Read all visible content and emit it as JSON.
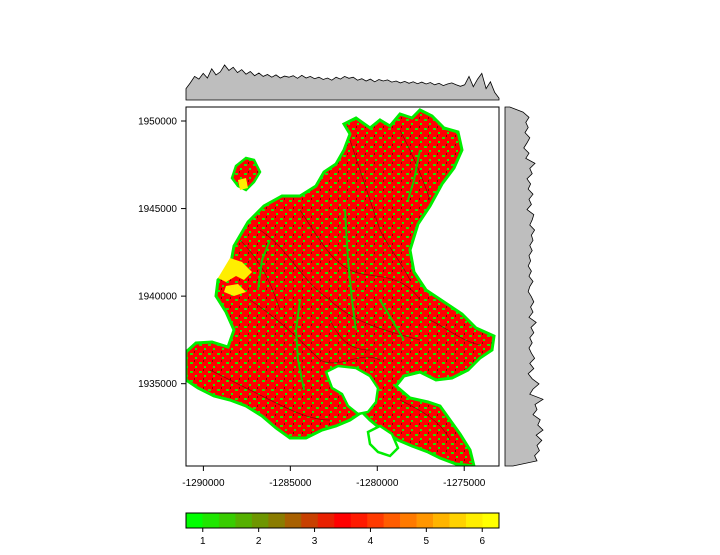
{
  "chart_data": {
    "type": "heatmap",
    "title": "",
    "xlabel": "",
    "ylabel": "",
    "xlim": [
      -1291000,
      -1273000
    ],
    "ylim": [
      1930300,
      1950800
    ],
    "x_ticks": [
      {
        "value": -1290000,
        "label": "-1290000"
      },
      {
        "value": -1285000,
        "label": "-1285000"
      },
      {
        "value": -1280000,
        "label": "-1280000"
      },
      {
        "value": -1275000,
        "label": "-1275000"
      }
    ],
    "y_ticks": [
      {
        "value": 1935000,
        "label": "1935000"
      },
      {
        "value": 1940000,
        "label": "1940000"
      },
      {
        "value": 1945000,
        "label": "1945000"
      },
      {
        "value": 1950000,
        "label": "1950000"
      }
    ],
    "colorbar": {
      "range": [
        0.7,
        6.3
      ],
      "colors": [
        "#00ff00",
        "#1fe600",
        "#38cc00",
        "#55b000",
        "#6e9600",
        "#8a7c00",
        "#a86000",
        "#c84000",
        "#e82000",
        "#ff0000",
        "#ff1a00",
        "#ff3a00",
        "#ff5c00",
        "#ff7a00",
        "#ff9600",
        "#ffb400",
        "#ffd200",
        "#ffee00",
        "#ffff00"
      ],
      "ticks": [
        {
          "value": 1,
          "label": "1"
        },
        {
          "value": 2,
          "label": "2"
        },
        {
          "value": 3,
          "label": "3"
        },
        {
          "value": 4,
          "label": "4"
        },
        {
          "value": 5,
          "label": "5"
        },
        {
          "value": 6,
          "label": "6"
        }
      ]
    },
    "x_marginal": [
      0.3,
      0.45,
      0.62,
      0.55,
      0.7,
      0.58,
      0.82,
      0.66,
      0.74,
      0.92,
      0.78,
      0.86,
      0.72,
      0.8,
      0.68,
      0.75,
      0.64,
      0.71,
      0.62,
      0.67,
      0.6,
      0.66,
      0.58,
      0.63,
      0.6,
      0.64,
      0.57,
      0.65,
      0.58,
      0.62,
      0.56,
      0.6,
      0.54,
      0.58,
      0.52,
      0.6,
      0.55,
      0.62,
      0.57,
      0.6,
      0.52,
      0.56,
      0.5,
      0.55,
      0.48,
      0.54,
      0.5,
      0.53,
      0.47,
      0.5,
      0.45,
      0.49,
      0.44,
      0.48,
      0.43,
      0.47,
      0.42,
      0.46,
      0.4,
      0.44,
      0.38,
      0.42,
      0.45,
      0.4,
      0.36,
      0.4,
      0.62,
      0.35,
      0.55,
      0.7,
      0.3,
      0.48,
      0.2,
      0.05
    ],
    "y_marginal": [
      0.12,
      0.45,
      0.6,
      0.52,
      0.58,
      0.5,
      0.62,
      0.55,
      0.47,
      0.6,
      0.52,
      0.75,
      0.62,
      0.68,
      0.55,
      0.64,
      0.58,
      0.7,
      0.6,
      0.66,
      0.55,
      0.72,
      0.68,
      0.62,
      0.74,
      0.66,
      0.7,
      0.62,
      0.68,
      0.6,
      0.64,
      0.58,
      0.66,
      0.6,
      0.7,
      0.62,
      0.58,
      0.66,
      0.72,
      0.64,
      0.7,
      0.6,
      0.78,
      0.65,
      0.72,
      0.62,
      0.68,
      0.6,
      0.66,
      0.74,
      0.62,
      0.72,
      0.58,
      0.68,
      0.85,
      0.7,
      0.62,
      0.95,
      0.75,
      0.8,
      0.7,
      0.88,
      0.82,
      0.95,
      0.78,
      0.92,
      0.8,
      0.86,
      0.74,
      0.8,
      0.2
    ]
  },
  "colors": {
    "low": "#00ff00",
    "mid": "#ff0000",
    "high": "#ffff00",
    "marginal_fill": "#bebebe",
    "axis": "#000000"
  }
}
